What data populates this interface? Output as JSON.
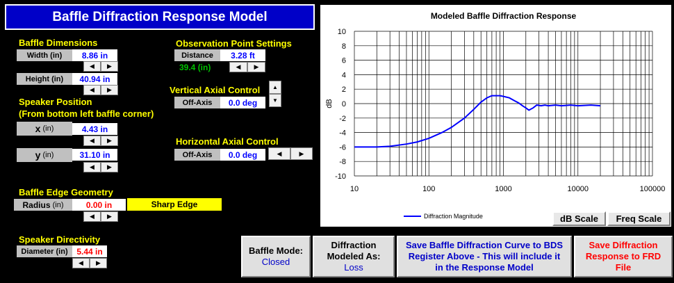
{
  "title": "Baffle Diffraction Response Model",
  "baffle_dimensions": {
    "heading": "Baffle Dimensions",
    "width_label": "Width (in)",
    "width_value": "8.86 in",
    "height_label": "Height (in)",
    "height_value": "40.94 in"
  },
  "speaker_position": {
    "heading": "Speaker Position",
    "subheading": "(From bottom left baffle corner)",
    "x_label": "x",
    "x_unit": "(in)",
    "x_value": "4.43 in",
    "y_label": "y",
    "y_unit": "(in)",
    "y_value": "31.10 in"
  },
  "observation": {
    "heading": "Observation Point Settings",
    "distance_label": "Distance",
    "distance_value": "3.28 ft",
    "distance_in": "39.4 (in)"
  },
  "vertical_axial": {
    "heading": "Vertical Axial Control",
    "offaxis_label": "Off-Axis",
    "offaxis_value": "0.0 deg"
  },
  "horizontal_axial": {
    "heading": "Horizontal Axial Control",
    "offaxis_label": "Off-Axis",
    "offaxis_value": "0.0 deg"
  },
  "edge_geometry": {
    "heading": "Baffle Edge Geometry",
    "radius_label": "Radius",
    "radius_unit": "(in)",
    "radius_value": "0.00 in",
    "edge_type": "Sharp Edge"
  },
  "directivity": {
    "heading": "Speaker Directivity",
    "diameter_label": "Diameter (in)",
    "diameter_value": "5.44 in"
  },
  "spinner": {
    "left": "◀",
    "right": "▶",
    "up": "▲",
    "down": "▼"
  },
  "buttons": {
    "baffle_mode_label": "Baffle Mode:",
    "baffle_mode_value": "Closed",
    "diffraction_label_1": "Diffraction",
    "diffraction_label_2": "Modeled As:",
    "diffraction_value": "Loss",
    "save_bds_1": "Save Baffle Diffraction Curve to BDS",
    "save_bds_2": "Register Above - This will include it",
    "save_bds_3": "in the Response Model",
    "save_frd_1": "Save Diffraction",
    "save_frd_2": "Response to FRD",
    "save_frd_3": "File",
    "db_scale": "dB Scale",
    "freq_scale": "Freq Scale"
  },
  "colors": {
    "title_bg": "#0000c8",
    "heading_yellow": "#ffff00",
    "value_blue": "#0000ff",
    "value_red": "#ff0000",
    "green_text": "#00c000",
    "series_color": "#0000ff"
  },
  "chart_data": {
    "type": "line",
    "title": "Modeled Baffle Diffraction Response",
    "xlabel": "",
    "ylabel": "dB",
    "xscale": "log",
    "xlim": [
      10,
      100000
    ],
    "ylim": [
      -10,
      10
    ],
    "yticks": [
      10,
      8,
      6,
      4,
      2,
      0,
      -2,
      -4,
      -6,
      -8,
      -10
    ],
    "xticks": [
      10,
      100,
      1000,
      10000,
      100000
    ],
    "xtick_labels": [
      "10",
      "100",
      "1000",
      "10000",
      "100000"
    ],
    "grid": true,
    "legend": "bottom-left",
    "series": [
      {
        "name": "Diffraction Magnitude",
        "x": [
          10,
          20,
          30,
          50,
          70,
          100,
          150,
          200,
          300,
          400,
          500,
          600,
          700,
          800,
          900,
          1000,
          1200,
          1400,
          1600,
          1800,
          2000,
          2200,
          2500,
          2800,
          3200,
          3600,
          4000,
          5000,
          6000,
          8000,
          10000,
          15000,
          20000
        ],
        "y": [
          -6.0,
          -6.0,
          -5.9,
          -5.6,
          -5.3,
          -4.8,
          -4.0,
          -3.3,
          -2.0,
          -0.8,
          0.2,
          0.8,
          1.1,
          1.1,
          1.1,
          1.0,
          0.8,
          0.4,
          0.1,
          -0.3,
          -0.6,
          -0.9,
          -0.6,
          -0.2,
          -0.3,
          -0.2,
          -0.3,
          -0.2,
          -0.3,
          -0.2,
          -0.3,
          -0.2,
          -0.3
        ]
      }
    ]
  }
}
